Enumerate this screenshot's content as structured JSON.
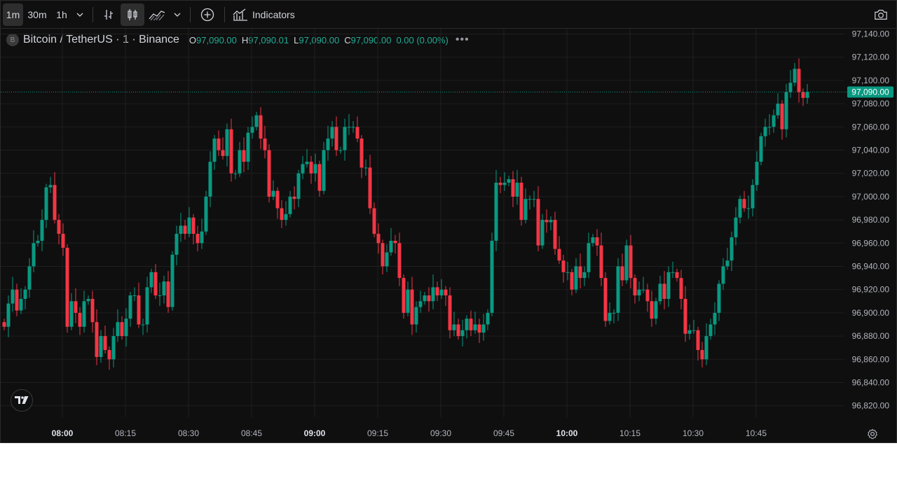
{
  "toolbar": {
    "intervals": [
      "1m",
      "30m",
      "1h"
    ],
    "active_interval": "1m",
    "indicators_label": "Indicators"
  },
  "legend": {
    "logo_letter": "B",
    "symbol": "Bitcoin / TetherUS · 1 · Binance",
    "open_key": "O",
    "open": "97,090.00",
    "high_key": "H",
    "high": "97,090.01",
    "low_key": "L",
    "low": "97,090.00",
    "close_key": "C",
    "close": "97,090.00",
    "change": "0.00 (0.00%)",
    "more": "•••"
  },
  "colors": {
    "up": "#089981",
    "down": "#f23645",
    "background": "#0f0f0f",
    "grid": "#1f1f1f",
    "price_tag": "#089981"
  },
  "current_price_label": "97,090.00",
  "chart_data": {
    "type": "candlestick",
    "symbol": "Bitcoin / TetherUS",
    "interval": "1",
    "exchange": "Binance",
    "y_ticks": [
      97140,
      97120,
      97100,
      97080,
      97060,
      97040,
      97020,
      97000,
      96980,
      96960,
      96940,
      96920,
      96900,
      96880,
      96860,
      96840,
      96820
    ],
    "y_tick_labels": [
      "97,140.00",
      "97,120.00",
      "97,100.00",
      "97,080.00",
      "97,060.00",
      "97,040.00",
      "97,020.00",
      "97,000.00",
      "96,980.00",
      "96,960.00",
      "96,940.00",
      "96,920.00",
      "96,900.00",
      "96,880.00",
      "96,860.00",
      "96,840.00",
      "96,820.00"
    ],
    "x_ticks": [
      {
        "label": "08:00",
        "bold": true
      },
      {
        "label": "08:15",
        "bold": false
      },
      {
        "label": "08:30",
        "bold": false
      },
      {
        "label": "08:45",
        "bold": false
      },
      {
        "label": "09:00",
        "bold": true
      },
      {
        "label": "09:15",
        "bold": false
      },
      {
        "label": "09:30",
        "bold": false
      },
      {
        "label": "09:45",
        "bold": false
      },
      {
        "label": "10:00",
        "bold": true
      },
      {
        "label": "10:15",
        "bold": false
      },
      {
        "label": "10:30",
        "bold": false
      },
      {
        "label": "10:45",
        "bold": false
      }
    ],
    "last_price": 97090,
    "closes": [
      96888,
      96908,
      96920,
      96902,
      96912,
      96920,
      96940,
      96960,
      96962,
      96980,
      97008,
      97010,
      96980,
      96968,
      96956,
      96888,
      96910,
      96900,
      96888,
      96910,
      96912,
      96892,
      96862,
      96880,
      96868,
      96860,
      96880,
      96892,
      96880,
      96895,
      96915,
      96915,
      96890,
      96890,
      96922,
      96935,
      96915,
      96915,
      96927,
      96905,
      96950,
      96968,
      96975,
      96968,
      96982,
      96968,
      96960,
      96970,
      97000,
      97030,
      97050,
      97040,
      97035,
      97058,
      97020,
      97020,
      97040,
      97030,
      97055,
      97060,
      97070,
      97050,
      97040,
      97000,
      97005,
      96990,
      96980,
      96985,
      97000,
      96998,
      97020,
      97028,
      97030,
      97020,
      97028,
      97005,
      97040,
      97050,
      97060,
      97040,
      97040,
      97060,
      97060,
      97060,
      97050,
      97025,
      97025,
      96990,
      96968,
      96960,
      96940,
      96952,
      96962,
      96960,
      96930,
      96900,
      96920,
      96890,
      96905,
      96910,
      96915,
      96910,
      96922,
      96915,
      96920,
      96915,
      96885,
      96890,
      96880,
      96885,
      96895,
      96885,
      96890,
      96883,
      96890,
      96900,
      96962,
      97012,
      97010,
      97012,
      97015,
      97000,
      97012,
      96980,
      96998,
      96998,
      96998,
      96958,
      96980,
      96978,
      96980,
      96955,
      96945,
      96935,
      96935,
      96920,
      96940,
      96930,
      96935,
      96960,
      96965,
      96958,
      96930,
      96893,
      96900,
      96900,
      96940,
      96928,
      96958,
      96930,
      96915,
      96920,
      96920,
      96910,
      96895,
      96910,
      96925,
      96912,
      96935,
      96935,
      96930,
      96912,
      96882,
      96885,
      96885,
      96868,
      96860,
      96880,
      96890,
      96900,
      96925,
      96940,
      96945,
      96965,
      96982,
      96998,
      96990,
      96990,
      97010,
      97030,
      97052,
      97060,
      97060,
      97070,
      97080,
      97058,
      97090,
      97098,
      97110,
      97090,
      97085,
      97090
    ]
  }
}
